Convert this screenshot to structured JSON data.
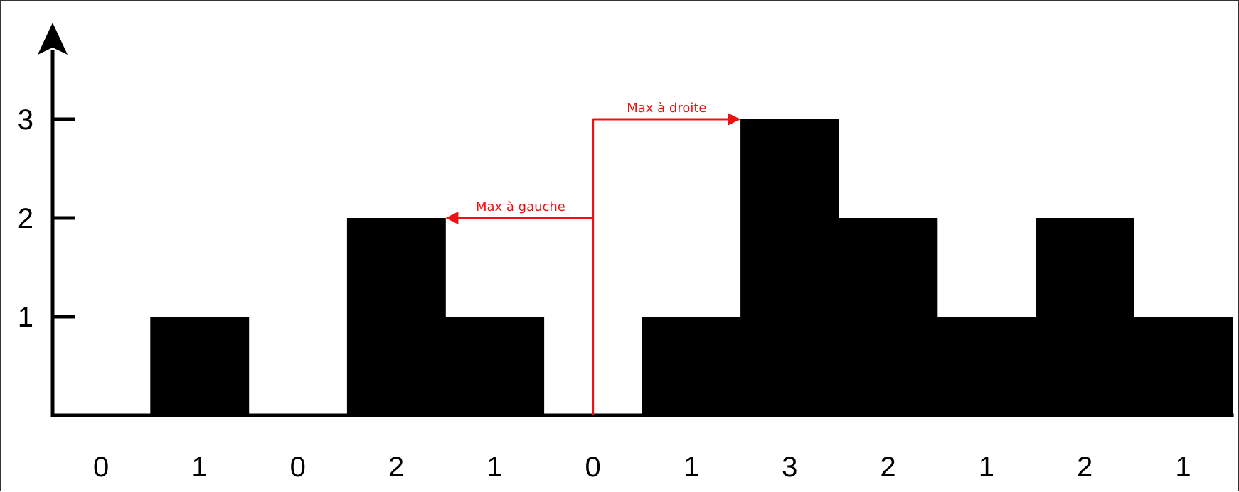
{
  "chart_data": {
    "type": "bar",
    "title": "",
    "xlabel": "",
    "ylabel": "",
    "categories": [
      "0",
      "1",
      "0",
      "2",
      "1",
      "0",
      "1",
      "3",
      "2",
      "1",
      "2",
      "1"
    ],
    "values": [
      0,
      1,
      0,
      2,
      1,
      0,
      1,
      3,
      2,
      1,
      2,
      1
    ],
    "ylim": [
      0,
      3.6
    ],
    "y_ticks": [
      "1",
      "2",
      "3"
    ],
    "grid": false,
    "bar_color": "#000000",
    "annotations": {
      "color": "#ee1111",
      "marker_index": 5,
      "left_max": {
        "label": "Max à gauche",
        "target_index": 3,
        "level": 2
      },
      "right_max": {
        "label": "Max à droite",
        "target_index": 7,
        "level": 3
      }
    }
  }
}
